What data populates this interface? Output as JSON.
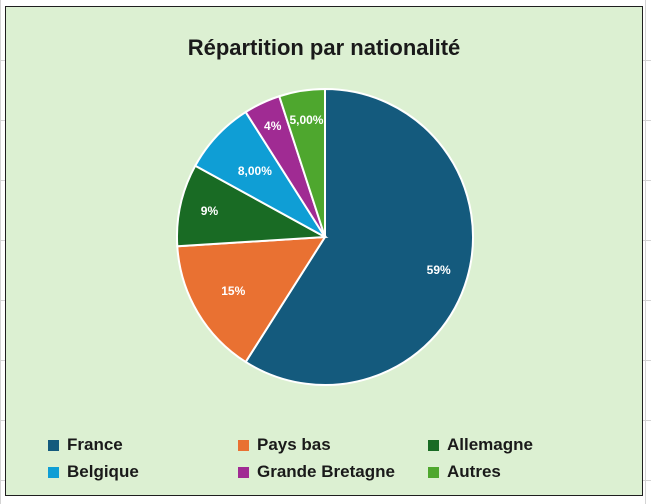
{
  "chart_data": {
    "type": "pie",
    "title": "Répartition par nationalité",
    "categories": [
      "France",
      "Pays bas",
      "Allemagne",
      "Belgique",
      "Grande Bretagne",
      "Autres"
    ],
    "values": [
      59,
      15,
      9,
      8,
      4,
      5
    ],
    "data_labels": [
      "59%",
      "15%",
      "9%",
      "8,00%",
      "4%",
      "5,00%"
    ],
    "colors": [
      "#145a7d",
      "#e97132",
      "#196b24",
      "#0f9ed5",
      "#a02b93",
      "#4ea72e"
    ],
    "legend_position": "bottom"
  }
}
